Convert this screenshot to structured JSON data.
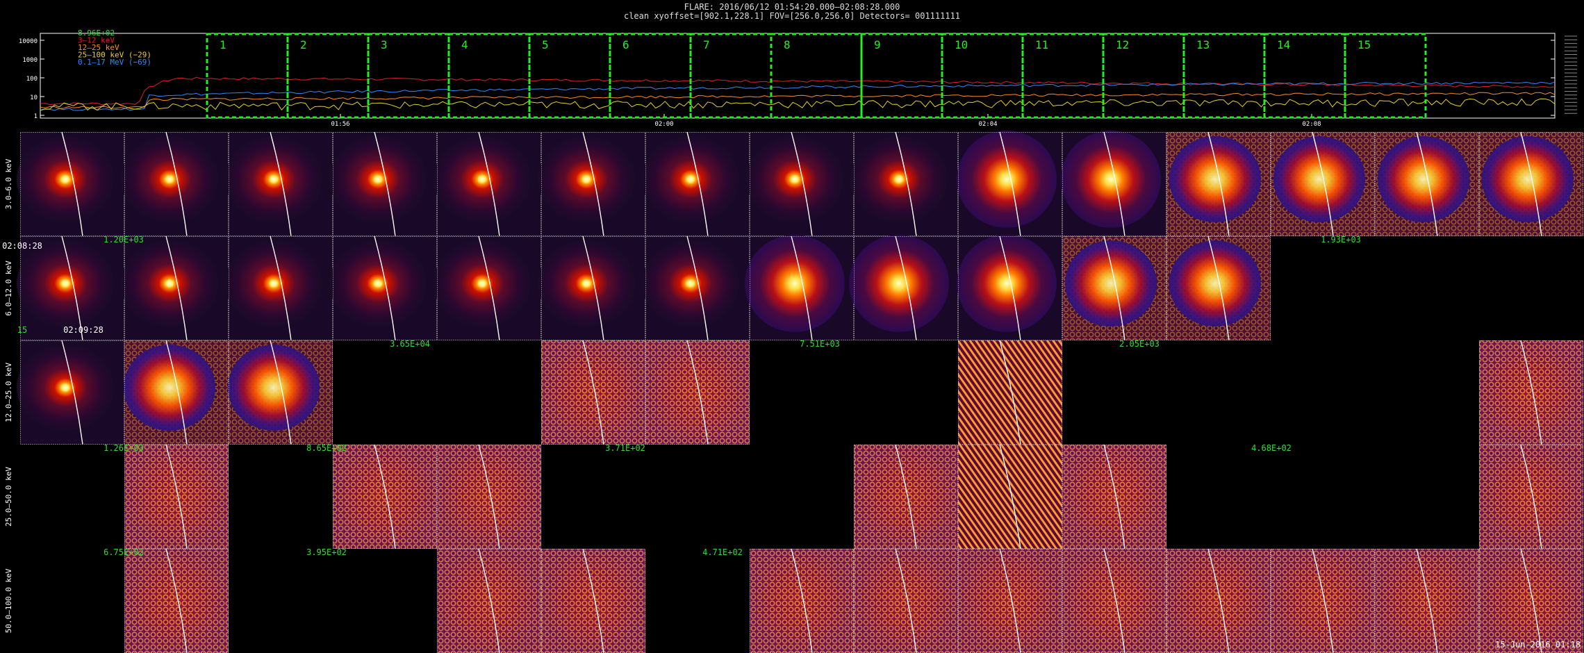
{
  "header": {
    "line1": "FLARE: 2016/06/12 01:54:20.000—02:08:28.000",
    "line2": "clean    xyoffset=[902.1,228.1]    FOV=[256.0,256.0]    Detectors= 001111111"
  },
  "lightcurve": {
    "y_ticks": [
      "10000",
      "1000",
      "100",
      "10",
      "1"
    ],
    "x_ticks": [
      "01:56",
      "02:00",
      "02:04",
      "02:08"
    ],
    "legend": [
      {
        "text": "8.96E+02",
        "color": "#33dd33"
      },
      {
        "text": "3–12 keV",
        "color": "#e02020"
      },
      {
        "text": "12–25 keV",
        "color": "#ff8c1a"
      },
      {
        "text": "25–100 keV (−29)",
        "color": "#e8d020"
      },
      {
        "text": "0.1–17 MeV (−69)",
        "color": "#3388ff"
      }
    ],
    "intervals": [
      "1",
      "2",
      "3",
      "4",
      "5",
      "6",
      "7",
      "8",
      "9",
      "10",
      "11",
      "12",
      "13",
      "14",
      "15"
    ],
    "interval_color": "#22ee22"
  },
  "rows": [
    {
      "label": "3.0–6.0 keV"
    },
    {
      "label": "6.0–12.0 keV"
    },
    {
      "label": "12.0–25.0 keV"
    },
    {
      "label": "25.0–50.0 keV"
    },
    {
      "label": "50.0–100.0 keV"
    }
  ],
  "grid_annotations": [
    {
      "text": "1.20E+03",
      "color": "#33dd33"
    },
    {
      "text": "02:08:28",
      "color": "#ffffff"
    },
    {
      "text": "15",
      "color": "#33dd33"
    },
    {
      "text": "02:09:28",
      "color": "#ffffff"
    },
    {
      "text": "1.93E+03",
      "color": "#33dd33"
    },
    {
      "text": "3.65E+04",
      "color": "#33dd33"
    },
    {
      "text": "7.51E+03",
      "color": "#33dd33"
    },
    {
      "text": "2.05E+03",
      "color": "#33dd33"
    },
    {
      "text": "1.26E+03",
      "color": "#33dd33"
    },
    {
      "text": "8.65E+02",
      "color": "#33dd33"
    },
    {
      "text": "3.71E+02",
      "color": "#33dd33"
    },
    {
      "text": "4.68E+02",
      "color": "#33dd33"
    },
    {
      "text": "6.75E+02",
      "color": "#33dd33"
    },
    {
      "text": "3.95E+02",
      "color": "#33dd33"
    },
    {
      "text": "4.71E+02",
      "color": "#33dd33"
    }
  ],
  "footer": {
    "timestamp": "15-Jun-2016 01:18"
  }
}
